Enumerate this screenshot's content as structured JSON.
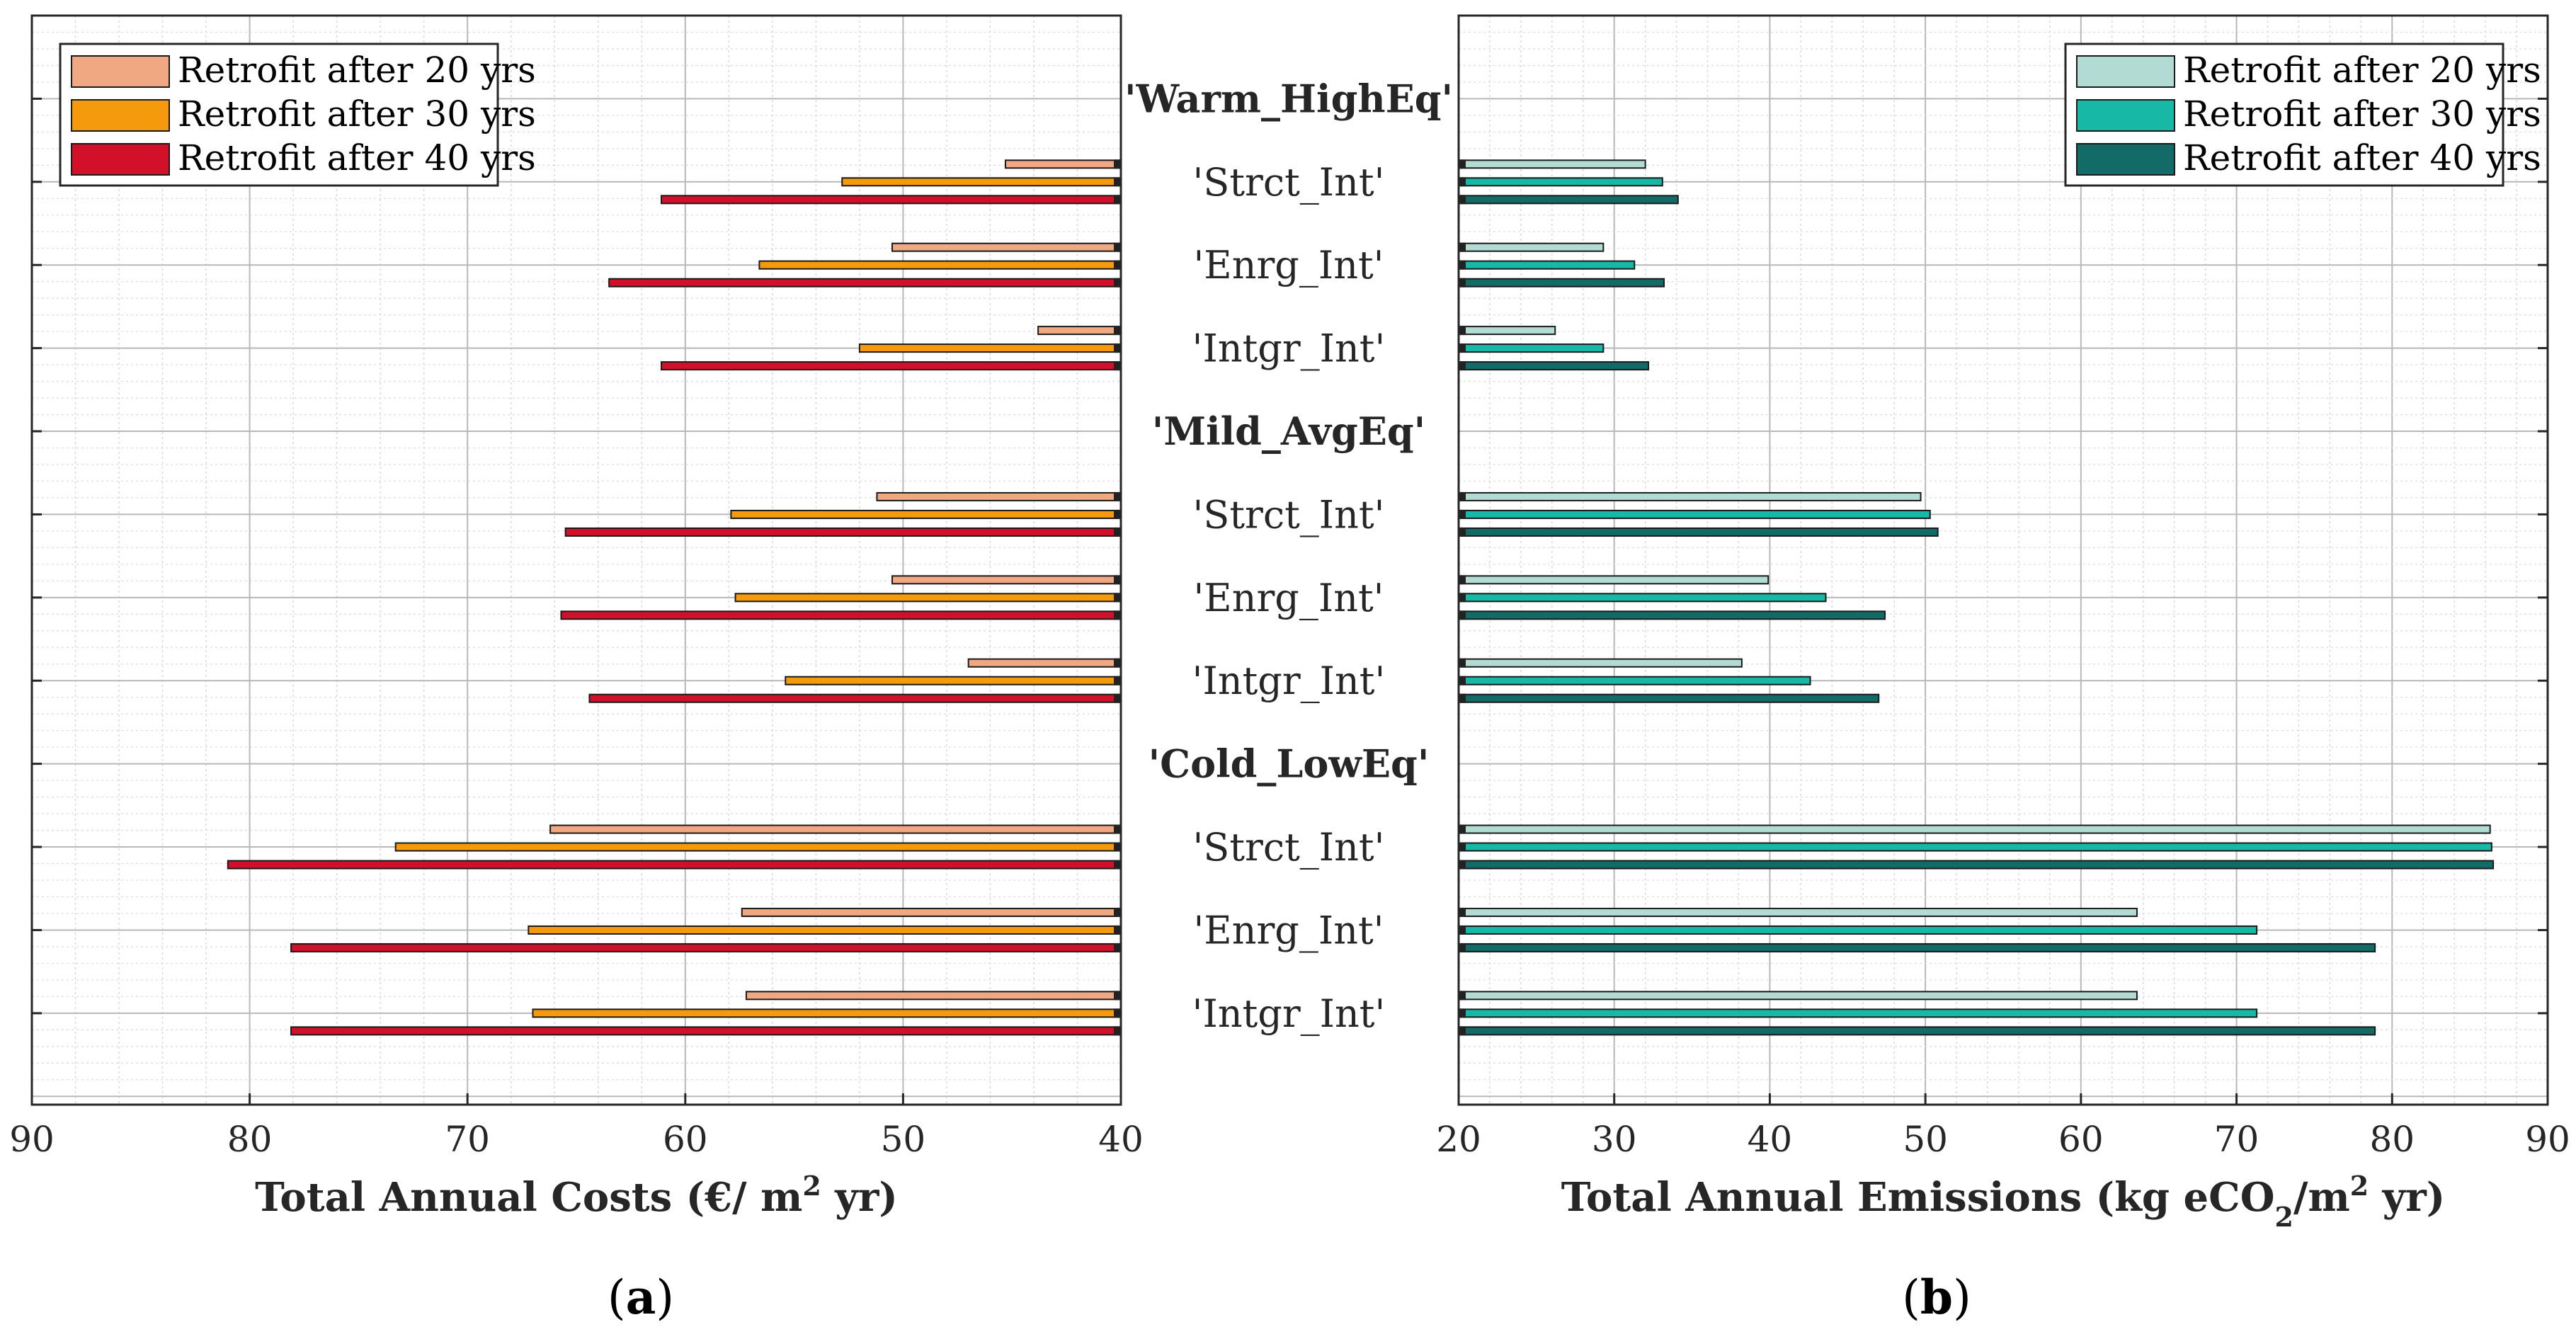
{
  "chart_data": [
    {
      "type": "bar",
      "orientation": "horizontal",
      "panel": "(a)",
      "panel_letter": "a",
      "xlabel_prefix": "Total Annual Costs (€/ m",
      "xlabel_sup": "2",
      "xlabel_suffix": " yr)",
      "xlim": [
        90,
        40
      ],
      "xticks": [
        90,
        80,
        70,
        60,
        50,
        40
      ],
      "x_reversed": true,
      "grid": true,
      "legend_position": "top-left",
      "groups": [
        {
          "label": "'Warm_HighEq'",
          "categories": [
            "'Strct_Int'",
            "'Enrg_Int'",
            "'Intgr_Int'"
          ]
        },
        {
          "label": "'Mild_AvgEq'",
          "categories": [
            "'Strct_Int'",
            "'Enrg_Int'",
            "'Intgr_Int'"
          ]
        },
        {
          "label": "'Cold_LowEq'",
          "categories": [
            "'Strct_Int'",
            "'Enrg_Int'",
            "'Intgr_Int'"
          ]
        }
      ],
      "series": [
        {
          "name": "Retrofit after 20 yrs",
          "color": "#F0A882",
          "values": [
            45.3,
            50.5,
            43.8,
            51.2,
            50.5,
            47.0,
            66.2,
            57.4,
            57.2
          ]
        },
        {
          "name": "Retrofit after 30 yrs",
          "color": "#F59A0D",
          "values": [
            52.8,
            56.6,
            52.0,
            57.9,
            57.7,
            55.4,
            73.3,
            67.2,
            67.0
          ]
        },
        {
          "name": "Retrofit after 40 yrs",
          "color": "#D2102A",
          "values": [
            61.1,
            63.5,
            61.1,
            65.5,
            65.7,
            64.4,
            81.0,
            78.1,
            78.1
          ]
        }
      ]
    },
    {
      "type": "bar",
      "orientation": "horizontal",
      "panel": "(b)",
      "panel_letter": "b",
      "xlabel_prefix": "Total Annual Emissions (kg eCO",
      "xlabel_sub": "2",
      "xlabel_mid": "/m",
      "xlabel_sup": "2",
      "xlabel_suffix": " yr)",
      "xlim": [
        20,
        90
      ],
      "xticks": [
        20,
        30,
        40,
        50,
        60,
        70,
        80,
        90
      ],
      "grid": true,
      "legend_position": "top-right",
      "groups": [
        {
          "label": "'Warm_HighEq'",
          "categories": [
            "'Strct_Int'",
            "'Enrg_Int'",
            "'Intgr_Int'"
          ]
        },
        {
          "label": "'Mild_AvgEq'",
          "categories": [
            "'Strct_Int'",
            "'Enrg_Int'",
            "'Intgr_Int'"
          ]
        },
        {
          "label": "'Cold_LowEq'",
          "categories": [
            "'Strct_Int'",
            "'Enrg_Int'",
            "'Intgr_Int'"
          ]
        }
      ],
      "series": [
        {
          "name": "Retrofit after 20 yrs",
          "color": "#B2DCD3",
          "values": [
            32.0,
            29.3,
            26.2,
            49.7,
            39.9,
            38.2,
            86.3,
            63.6,
            63.6
          ]
        },
        {
          "name": "Retrofit after 30 yrs",
          "color": "#17B8A6",
          "values": [
            33.1,
            31.3,
            29.3,
            50.3,
            43.6,
            42.6,
            86.4,
            71.3,
            71.3
          ]
        },
        {
          "name": "Retrofit after 40 yrs",
          "color": "#136B68",
          "values": [
            34.1,
            33.2,
            32.2,
            50.8,
            47.4,
            47.0,
            86.5,
            78.9,
            78.9
          ]
        }
      ]
    }
  ]
}
